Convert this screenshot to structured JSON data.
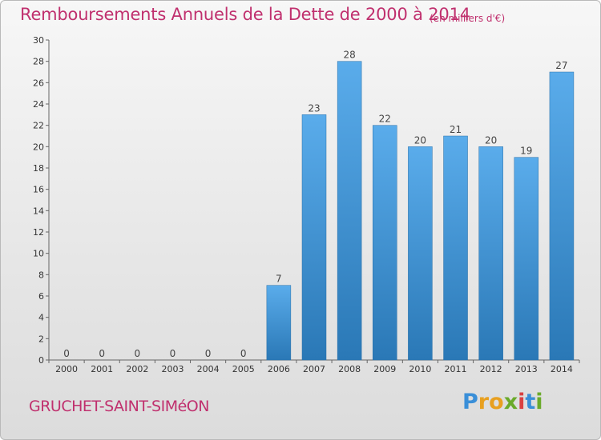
{
  "header": {
    "title": "Remboursements Annuels de la Dette de 2000 à 2014",
    "unit": "(en milliers d'€)"
  },
  "footer": {
    "city": "GRUCHET-SAINT-SIMéON",
    "logo_letters": [
      {
        "char": "P",
        "color": "#3a8fd8"
      },
      {
        "char": "r",
        "color": "#e8a020"
      },
      {
        "char": "o",
        "color": "#e8a020"
      },
      {
        "char": "x",
        "color": "#6aaa2a"
      },
      {
        "char": "i",
        "color": "#d94040"
      },
      {
        "char": "t",
        "color": "#3a8fd8"
      },
      {
        "char": "i",
        "color": "#6aaa2a"
      }
    ]
  },
  "colors": {
    "title": "#c0306e",
    "bar_light": "#5aaceb",
    "bar_dark": "#2a78b6"
  },
  "chart_data": {
    "type": "bar",
    "title": "Remboursements Annuels de la Dette de 2000 à 2014",
    "xlabel": "",
    "ylabel": "",
    "categories": [
      "2000",
      "2001",
      "2002",
      "2003",
      "2004",
      "2005",
      "2006",
      "2007",
      "2008",
      "2009",
      "2010",
      "2011",
      "2012",
      "2013",
      "2014"
    ],
    "values": [
      0,
      0,
      0,
      0,
      0,
      0,
      7,
      23,
      28,
      22,
      20,
      21,
      20,
      19,
      27
    ],
    "ylim": [
      0,
      30
    ],
    "yticks": [
      0,
      2,
      4,
      6,
      8,
      10,
      12,
      14,
      16,
      18,
      20,
      22,
      24,
      26,
      28,
      30
    ],
    "grid": false
  }
}
